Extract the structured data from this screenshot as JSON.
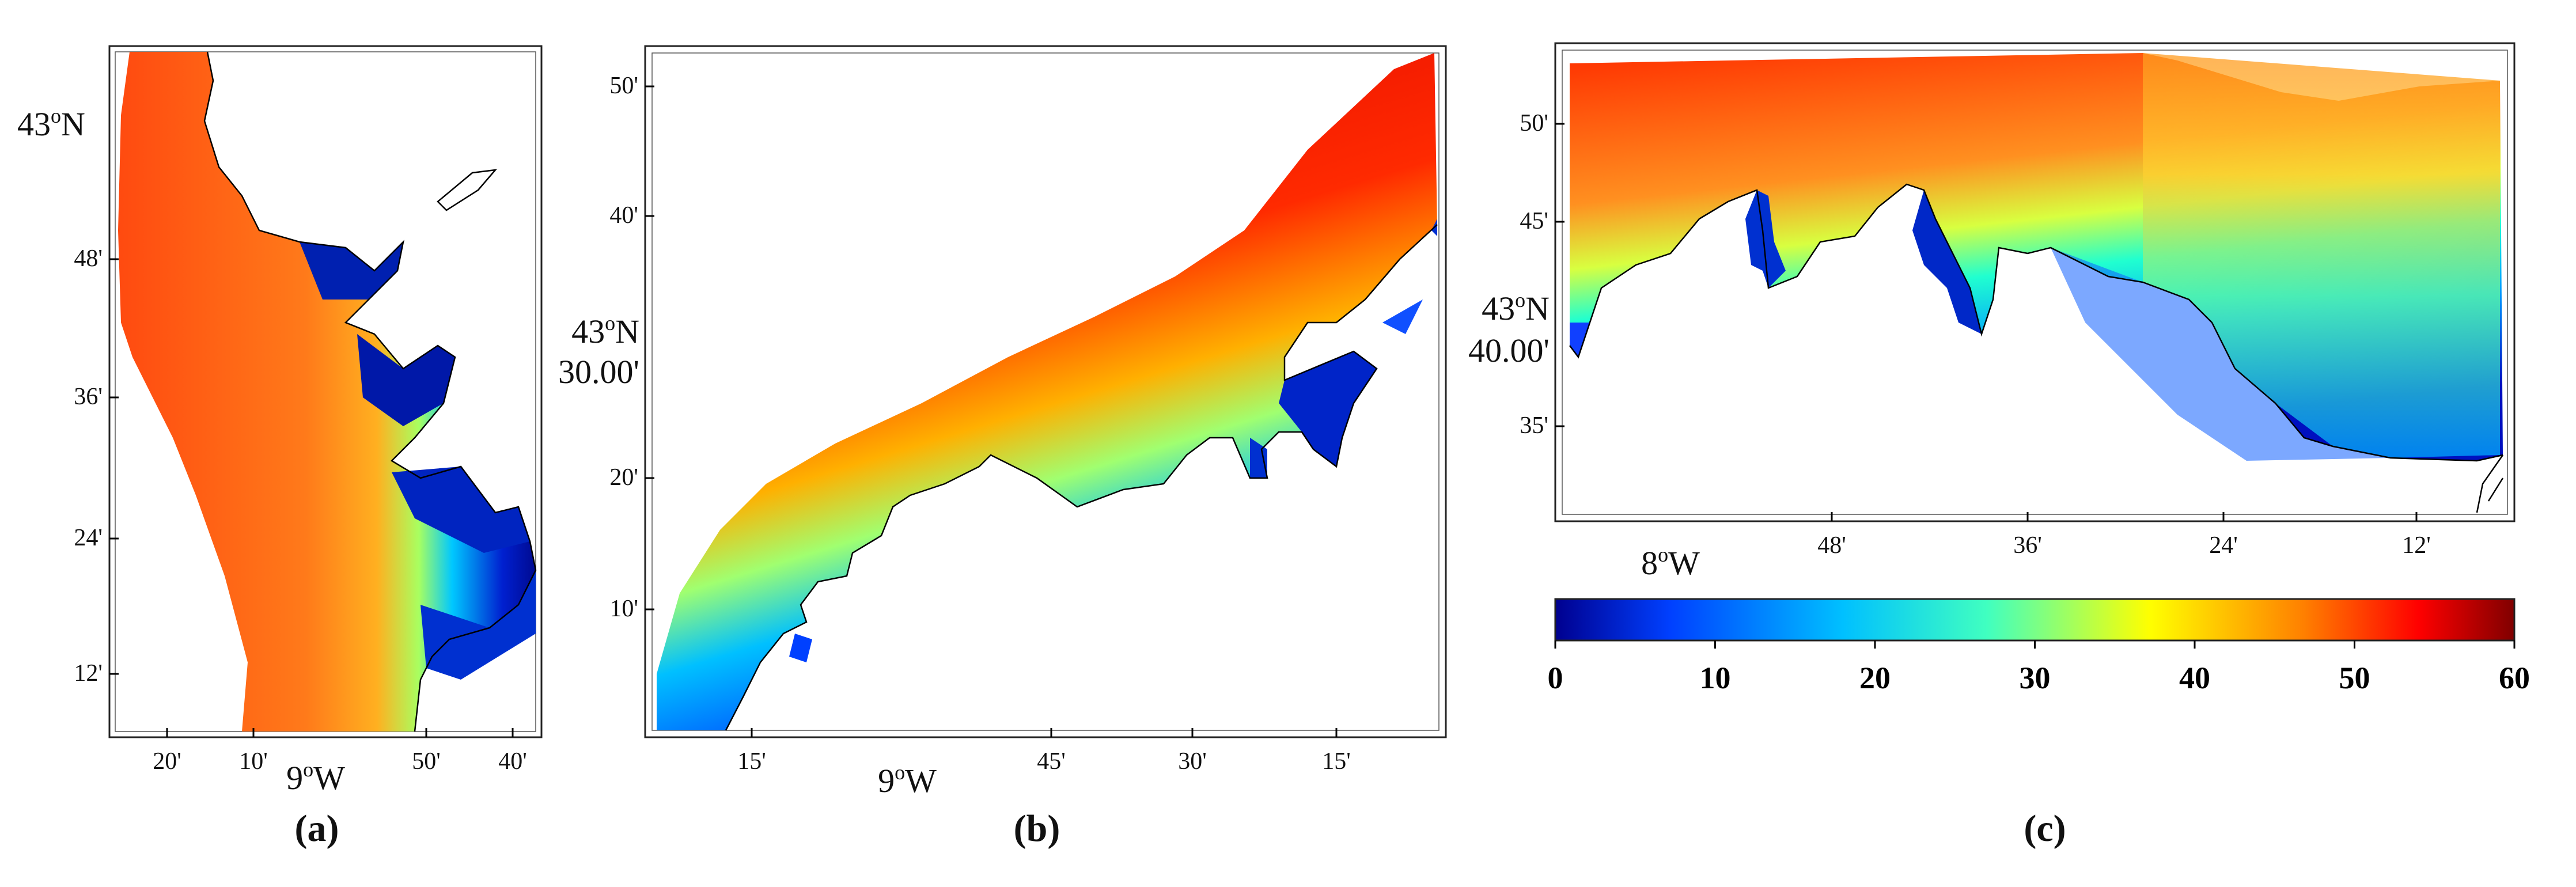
{
  "panels": [
    {
      "id": "a",
      "caption": "(a)",
      "lat_main": {
        "deg": "43",
        "sup": "o",
        "hemi": "N"
      },
      "lon_main": {
        "deg": "9",
        "sup": "o",
        "hemi": "W"
      },
      "lat_ticks": [
        "48'",
        "36'",
        "24'",
        "12'"
      ],
      "lon_ticks": [
        "20'",
        "10'",
        "50'",
        "40'"
      ]
    },
    {
      "id": "b",
      "caption": "(b)",
      "lat_main": {
        "deg": "43",
        "sup": "o",
        "hemi": "N",
        "extra": "30.00'"
      },
      "lon_main": {
        "deg": "9",
        "sup": "o",
        "hemi": "W"
      },
      "lat_ticks": [
        "50'",
        "40'",
        "20'",
        "10'"
      ],
      "lon_ticks": [
        "15'",
        "45'",
        "30'",
        "15'"
      ]
    },
    {
      "id": "c",
      "caption": "(c)",
      "lat_main": {
        "deg": "43",
        "sup": "o",
        "hemi": "N",
        "extra": "40.00'"
      },
      "lon_main": {
        "deg": "8",
        "sup": "o",
        "hemi": "W"
      },
      "lat_ticks": [
        "50'",
        "45'",
        "35'"
      ],
      "lon_ticks": [
        "48'",
        "36'",
        "24'",
        "12'"
      ]
    }
  ],
  "colorbar": {
    "min": 0,
    "max": 60,
    "ticks": [
      "0",
      "10",
      "20",
      "30",
      "40",
      "50",
      "60"
    ],
    "colors": [
      "#00008f",
      "#0040ff",
      "#00c0ff",
      "#40ffc0",
      "#ffff00",
      "#ff8000",
      "#ff0000",
      "#800000"
    ]
  }
}
